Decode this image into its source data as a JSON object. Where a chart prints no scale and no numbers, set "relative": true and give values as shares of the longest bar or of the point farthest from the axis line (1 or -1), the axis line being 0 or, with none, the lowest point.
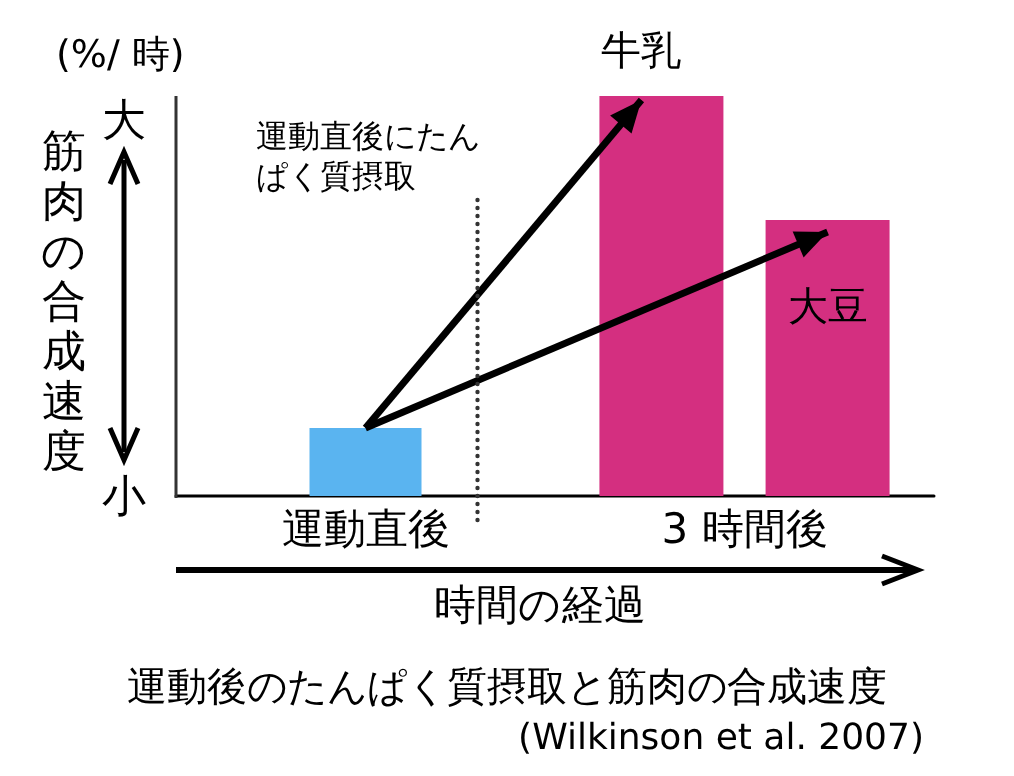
{
  "chart_data": {
    "type": "bar",
    "relative": true,
    "title": "運動後のたんぱく質摂取と筋肉の合成速度",
    "xlabel": "時間の経過",
    "ylabel": "筋肉の合成速度",
    "categories": [
      "運動直後",
      "3 時間後"
    ],
    "series": [
      {
        "color": "#5ab4f0",
        "values": [
          0.17,
          null
        ]
      },
      {
        "name": "牛乳",
        "color": "#d42f80",
        "values": [
          null,
          1
        ]
      },
      {
        "name": "大豆",
        "color": "#d42f80",
        "values": [
          null,
          0.69
        ]
      }
    ],
    "annotations": [
      "(%/ 時)",
      "大",
      "小",
      "(Wilkinson et al. 2007)",
      "運動直後にたんぱく質摂取"
    ],
    "grid": false
  }
}
